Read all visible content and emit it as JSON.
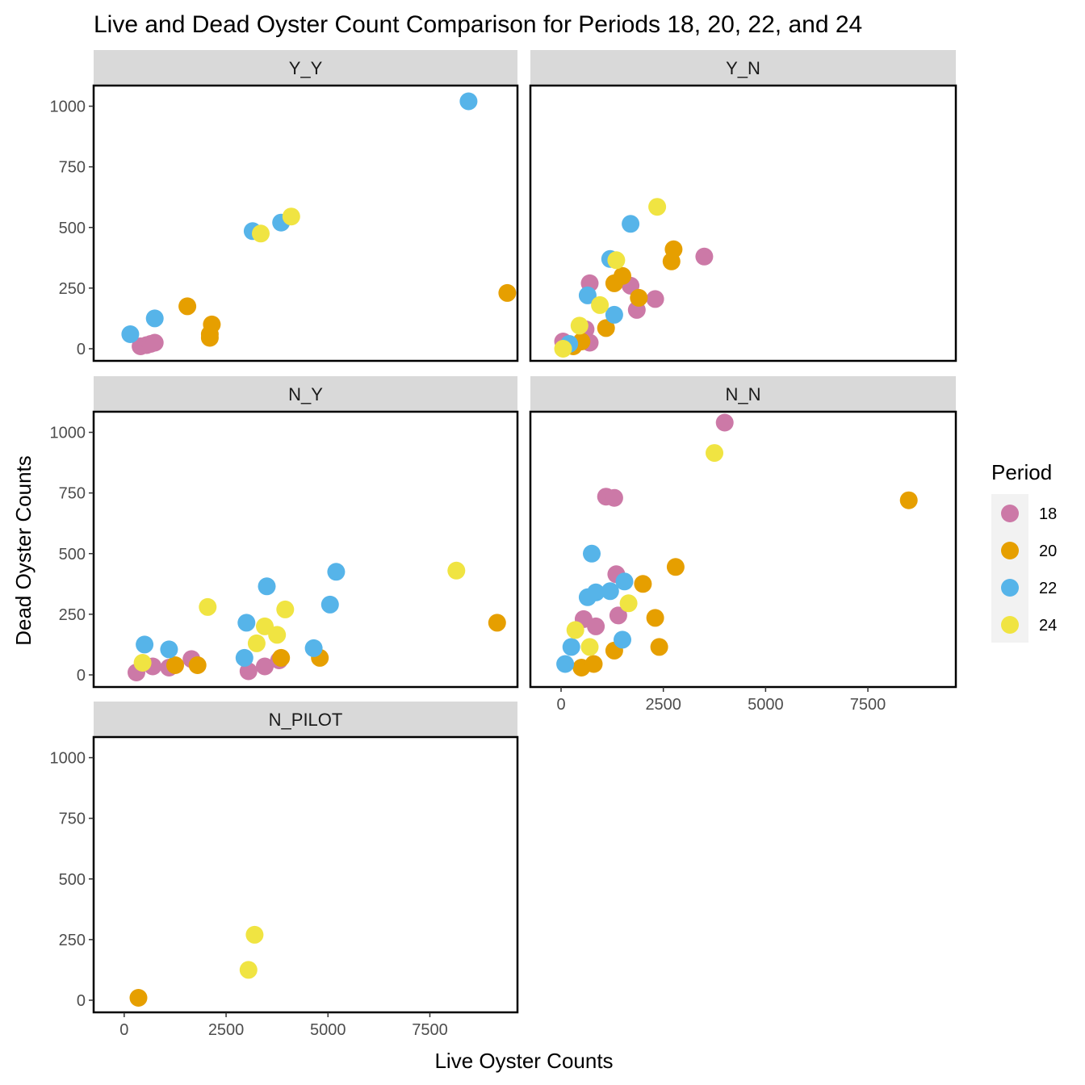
{
  "chart_data": {
    "type": "scatter",
    "title": "Live and Dead Oyster Count Comparison for Periods 18, 20, 22, and 24",
    "xlabel": "Live Oyster Counts",
    "ylabel": "Dead Oyster Counts",
    "xlim": [
      -750,
      9650
    ],
    "ylim": [
      -50,
      1085
    ],
    "x_ticks": [
      0,
      2500,
      5000,
      7500
    ],
    "x_tick_labels": [
      "0",
      "2500",
      "5000",
      "7500"
    ],
    "y_ticks": [
      0,
      250,
      500,
      750,
      1000
    ],
    "y_tick_labels": [
      "0",
      "250",
      "500",
      "750",
      "1000"
    ],
    "grid": false,
    "legend": {
      "title": "Period",
      "position": "right",
      "entries": [
        {
          "label": "18",
          "color": "#CC79A7"
        },
        {
          "label": "20",
          "color": "#E69F00"
        },
        {
          "label": "22",
          "color": "#56B4E9"
        },
        {
          "label": "24",
          "color": "#F0E442"
        }
      ]
    },
    "panels": [
      {
        "name": "Y_Y",
        "points": [
          {
            "period": "18",
            "x": 400,
            "y": 10
          },
          {
            "period": "18",
            "x": 550,
            "y": 15
          },
          {
            "period": "18",
            "x": 650,
            "y": 20
          },
          {
            "period": "18",
            "x": 750,
            "y": 25
          },
          {
            "period": "20",
            "x": 1550,
            "y": 175
          },
          {
            "period": "20",
            "x": 2100,
            "y": 45
          },
          {
            "period": "20",
            "x": 2100,
            "y": 60
          },
          {
            "period": "20",
            "x": 2150,
            "y": 100
          },
          {
            "period": "20",
            "x": 9400,
            "y": 230
          },
          {
            "period": "22",
            "x": 150,
            "y": 60
          },
          {
            "period": "22",
            "x": 750,
            "y": 125
          },
          {
            "period": "22",
            "x": 3150,
            "y": 485
          },
          {
            "period": "22",
            "x": 3850,
            "y": 520
          },
          {
            "period": "22",
            "x": 8450,
            "y": 1020
          },
          {
            "period": "24",
            "x": 3350,
            "y": 475
          },
          {
            "period": "24",
            "x": 4100,
            "y": 545
          }
        ]
      },
      {
        "name": "Y_N",
        "points": [
          {
            "period": "18",
            "x": 50,
            "y": 30
          },
          {
            "period": "18",
            "x": 700,
            "y": 25
          },
          {
            "period": "18",
            "x": 600,
            "y": 80
          },
          {
            "period": "18",
            "x": 700,
            "y": 270
          },
          {
            "period": "18",
            "x": 1850,
            "y": 160
          },
          {
            "period": "18",
            "x": 2300,
            "y": 205
          },
          {
            "period": "18",
            "x": 3500,
            "y": 380
          },
          {
            "period": "18",
            "x": 1700,
            "y": 260
          },
          {
            "period": "20",
            "x": 300,
            "y": 10
          },
          {
            "period": "20",
            "x": 500,
            "y": 30
          },
          {
            "period": "20",
            "x": 1100,
            "y": 85
          },
          {
            "period": "20",
            "x": 1300,
            "y": 270
          },
          {
            "period": "20",
            "x": 1500,
            "y": 300
          },
          {
            "period": "20",
            "x": 1900,
            "y": 210
          },
          {
            "period": "20",
            "x": 2700,
            "y": 360
          },
          {
            "period": "20",
            "x": 2750,
            "y": 410
          },
          {
            "period": "22",
            "x": 200,
            "y": 20
          },
          {
            "period": "22",
            "x": 650,
            "y": 220
          },
          {
            "period": "22",
            "x": 1200,
            "y": 370
          },
          {
            "period": "22",
            "x": 1300,
            "y": 140
          },
          {
            "period": "22",
            "x": 1700,
            "y": 515
          },
          {
            "period": "24",
            "x": 50,
            "y": 0
          },
          {
            "period": "24",
            "x": 450,
            "y": 95
          },
          {
            "period": "24",
            "x": 950,
            "y": 180
          },
          {
            "period": "24",
            "x": 1350,
            "y": 365
          },
          {
            "period": "24",
            "x": 2350,
            "y": 585
          }
        ]
      },
      {
        "name": "N_Y",
        "points": [
          {
            "period": "18",
            "x": 300,
            "y": 10
          },
          {
            "period": "18",
            "x": 700,
            "y": 35
          },
          {
            "period": "18",
            "x": 1100,
            "y": 30
          },
          {
            "period": "18",
            "x": 1650,
            "y": 65
          },
          {
            "period": "18",
            "x": 3050,
            "y": 15
          },
          {
            "period": "18",
            "x": 3450,
            "y": 35
          },
          {
            "period": "18",
            "x": 3800,
            "y": 60
          },
          {
            "period": "20",
            "x": 1250,
            "y": 40
          },
          {
            "period": "20",
            "x": 1800,
            "y": 40
          },
          {
            "period": "20",
            "x": 3850,
            "y": 70
          },
          {
            "period": "20",
            "x": 4800,
            "y": 70
          },
          {
            "period": "20",
            "x": 9150,
            "y": 215
          },
          {
            "period": "22",
            "x": 500,
            "y": 125
          },
          {
            "period": "22",
            "x": 1100,
            "y": 105
          },
          {
            "period": "22",
            "x": 2950,
            "y": 70
          },
          {
            "period": "22",
            "x": 3000,
            "y": 215
          },
          {
            "period": "22",
            "x": 3500,
            "y": 365
          },
          {
            "period": "22",
            "x": 4650,
            "y": 110
          },
          {
            "period": "22",
            "x": 5050,
            "y": 290
          },
          {
            "period": "22",
            "x": 5200,
            "y": 425
          },
          {
            "period": "24",
            "x": 450,
            "y": 50
          },
          {
            "period": "24",
            "x": 2050,
            "y": 280
          },
          {
            "period": "24",
            "x": 3250,
            "y": 130
          },
          {
            "period": "24",
            "x": 3450,
            "y": 200
          },
          {
            "period": "24",
            "x": 3750,
            "y": 165
          },
          {
            "period": "24",
            "x": 3950,
            "y": 270
          },
          {
            "period": "24",
            "x": 8150,
            "y": 430
          }
        ]
      },
      {
        "name": "N_N",
        "points": [
          {
            "period": "18",
            "x": 550,
            "y": 230
          },
          {
            "period": "18",
            "x": 850,
            "y": 200
          },
          {
            "period": "18",
            "x": 1100,
            "y": 735
          },
          {
            "period": "18",
            "x": 1300,
            "y": 730
          },
          {
            "period": "18",
            "x": 1350,
            "y": 415
          },
          {
            "period": "18",
            "x": 1400,
            "y": 245
          },
          {
            "period": "18",
            "x": 4000,
            "y": 1040
          },
          {
            "period": "20",
            "x": 500,
            "y": 30
          },
          {
            "period": "20",
            "x": 800,
            "y": 45
          },
          {
            "period": "20",
            "x": 1300,
            "y": 100
          },
          {
            "period": "20",
            "x": 2000,
            "y": 375
          },
          {
            "period": "20",
            "x": 2300,
            "y": 235
          },
          {
            "period": "20",
            "x": 2400,
            "y": 115
          },
          {
            "period": "20",
            "x": 2800,
            "y": 445
          },
          {
            "period": "20",
            "x": 8500,
            "y": 720
          },
          {
            "period": "22",
            "x": 100,
            "y": 45
          },
          {
            "period": "22",
            "x": 250,
            "y": 115
          },
          {
            "period": "22",
            "x": 650,
            "y": 320
          },
          {
            "period": "22",
            "x": 750,
            "y": 500
          },
          {
            "period": "22",
            "x": 850,
            "y": 340
          },
          {
            "period": "22",
            "x": 1200,
            "y": 345
          },
          {
            "period": "22",
            "x": 1500,
            "y": 145
          },
          {
            "period": "22",
            "x": 1550,
            "y": 385
          },
          {
            "period": "24",
            "x": 350,
            "y": 185
          },
          {
            "period": "24",
            "x": 700,
            "y": 115
          },
          {
            "period": "24",
            "x": 1650,
            "y": 295
          },
          {
            "period": "24",
            "x": 3750,
            "y": 915
          }
        ]
      },
      {
        "name": "N_PILOT",
        "points": [
          {
            "period": "20",
            "x": 350,
            "y": 10
          },
          {
            "period": "24",
            "x": 3050,
            "y": 125
          },
          {
            "period": "24",
            "x": 3200,
            "y": 270
          }
        ]
      }
    ]
  }
}
